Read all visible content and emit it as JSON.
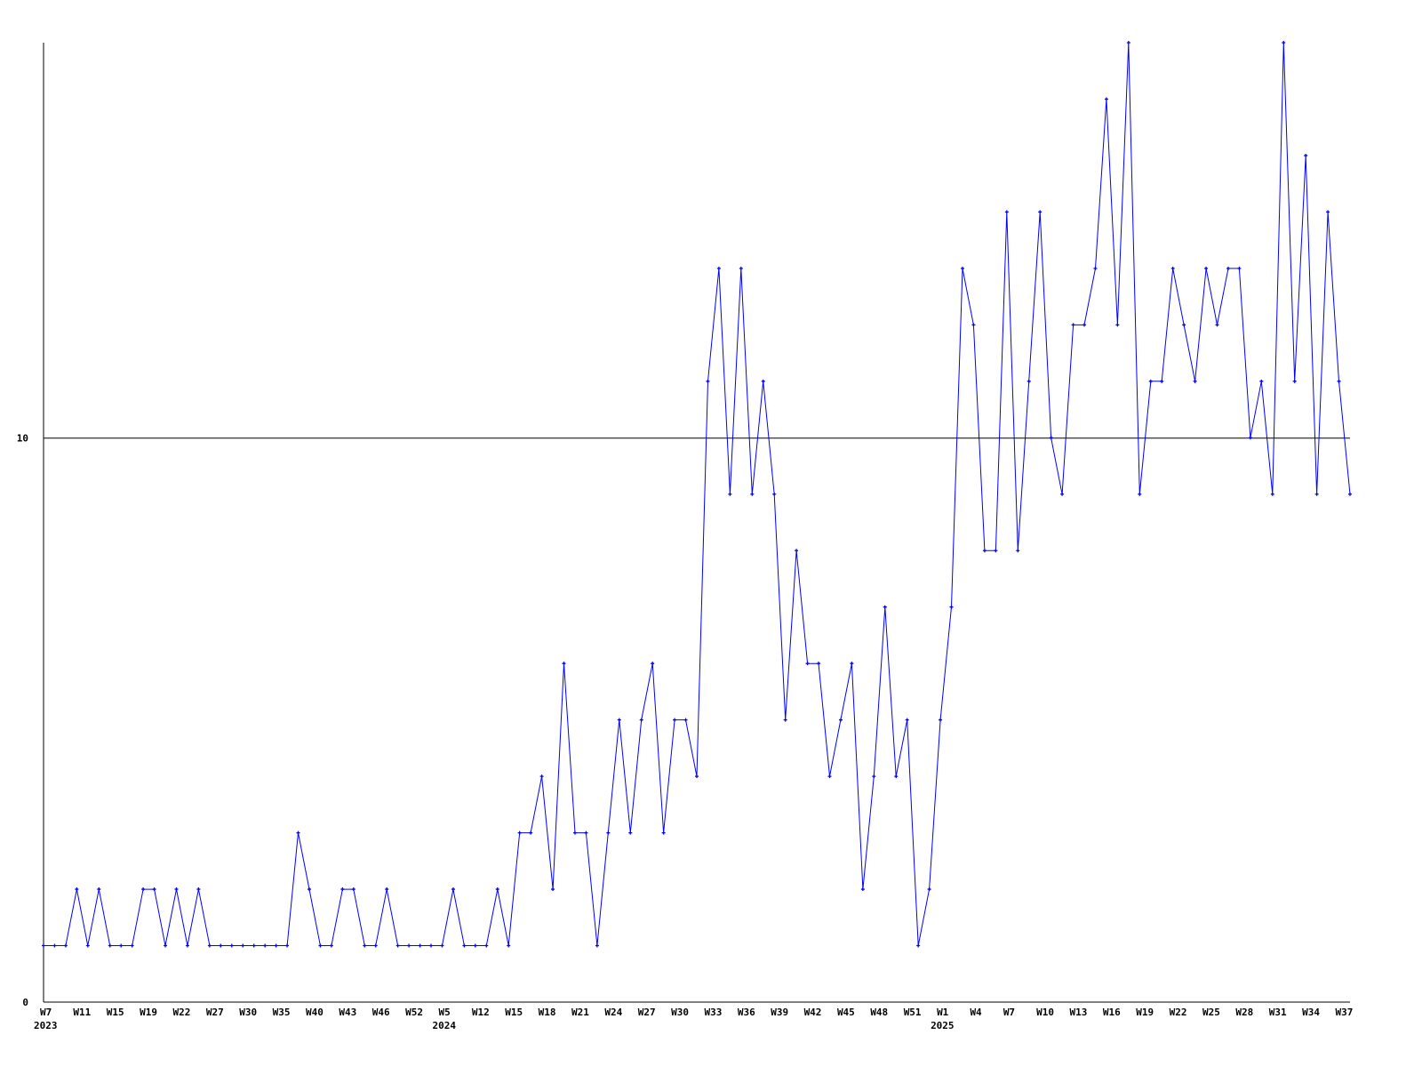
{
  "chart_data": {
    "type": "line",
    "title": "",
    "xlabel": "",
    "ylabel": "",
    "ylim": [
      0,
      17
    ],
    "y_ticks": [
      0,
      10
    ],
    "grid": "horizontal line at 10",
    "legend": "none",
    "colors": {
      "series": "#0000ff",
      "axis": "#000000"
    },
    "x_tick_labels": [
      "W7",
      "W11",
      "W15",
      "W19",
      "W22",
      "W27",
      "W30",
      "W35",
      "W40",
      "W43",
      "W46",
      "W52",
      "W5",
      "W12",
      "W15",
      "W18",
      "W21",
      "W24",
      "W27",
      "W30",
      "W33",
      "W36",
      "W39",
      "W42",
      "W45",
      "W48",
      "W51",
      "W1",
      "W4",
      "W7",
      "W10",
      "W13",
      "W16",
      "W19",
      "W22",
      "W25",
      "W28",
      "W31",
      "W34",
      "W37"
    ],
    "x_tick_every": 3,
    "year_labels": [
      {
        "label": "2023",
        "tick_index": 0
      },
      {
        "label": "2024",
        "tick_index": 12
      },
      {
        "label": "2025",
        "tick_index": 27
      }
    ],
    "series": [
      {
        "values": [
          1,
          1,
          1,
          2,
          1,
          2,
          1,
          1,
          1,
          2,
          2,
          1,
          2,
          1,
          2,
          1,
          1,
          1,
          1,
          1,
          1,
          1,
          1,
          3,
          2,
          1,
          1,
          2,
          2,
          1,
          1,
          2,
          1,
          1,
          1,
          1,
          1,
          2,
          1,
          1,
          1,
          2,
          1,
          3,
          3,
          4,
          2,
          6,
          3,
          3,
          1,
          3,
          5,
          3,
          5,
          6,
          3,
          5,
          5,
          4,
          11,
          13,
          9,
          13,
          9,
          11,
          9,
          5,
          8,
          6,
          6,
          4,
          5,
          6,
          2,
          4,
          7,
          4,
          5,
          1,
          2,
          5,
          7,
          13,
          12,
          8,
          8,
          14,
          8,
          11,
          14,
          10,
          9,
          12,
          12,
          13,
          16,
          12,
          17,
          9,
          11,
          11,
          13,
          12,
          11,
          13,
          12,
          13,
          13,
          10,
          11,
          9,
          17,
          11,
          15,
          9,
          14,
          11,
          9
        ]
      }
    ]
  }
}
